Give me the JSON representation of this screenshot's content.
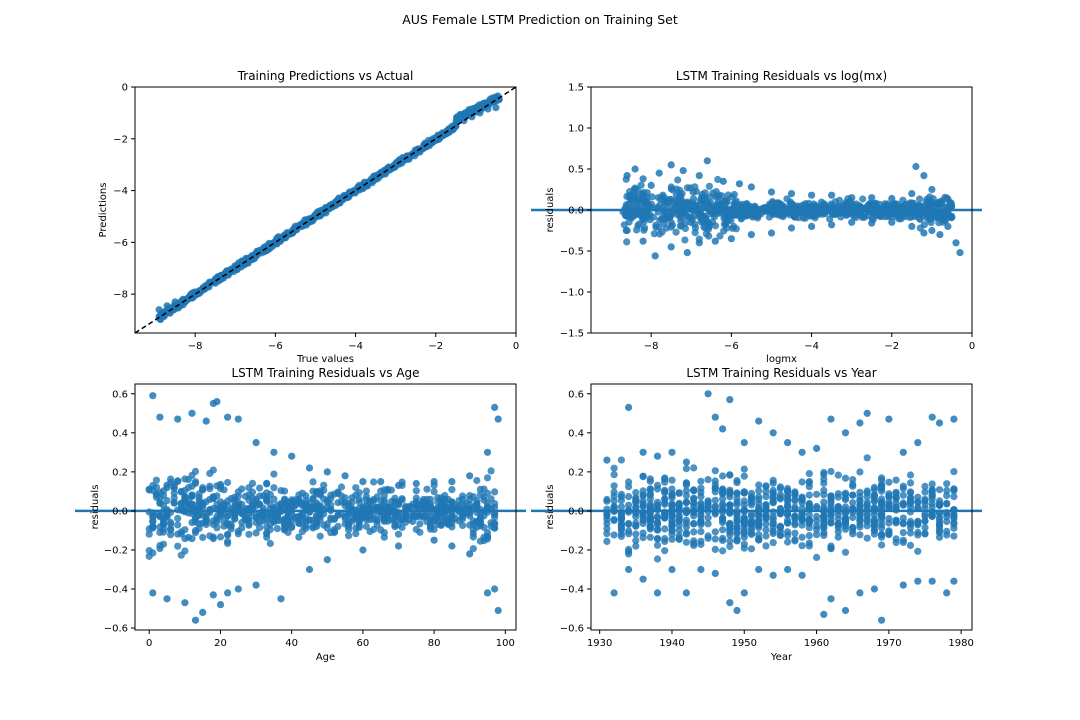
{
  "figure": {
    "suptitle": "AUS Female LSTM Prediction on Training Set"
  },
  "colors": {
    "points": "#1f77b4",
    "hline": "#1f77b4",
    "diagonal": "#000000"
  },
  "chart_data": [
    {
      "type": "scatter",
      "title": "Training Predictions vs Actual",
      "xlabel": "True values",
      "ylabel": "Predictions",
      "xlim": [
        -9.5,
        0
      ],
      "ylim": [
        -9.5,
        0
      ],
      "xticks": [
        -8,
        -6,
        -4,
        -2,
        0
      ],
      "yticks": [
        -8,
        -6,
        -4,
        -2,
        0
      ],
      "reference_line": {
        "style": "dashed",
        "from": [
          -9.5,
          -9.5
        ],
        "to": [
          0,
          0
        ]
      },
      "series": [
        {
          "points": [
            [
              -8.9,
              -8.6
            ],
            [
              -8.7,
              -8.45
            ],
            [
              -8.5,
              -8.3
            ],
            [
              -8.3,
              -8.2
            ],
            [
              -8.0,
              -7.95
            ],
            [
              -7.8,
              -7.75
            ],
            [
              -7.5,
              -7.45
            ],
            [
              -7.2,
              -7.1
            ],
            [
              -7.0,
              -6.95
            ],
            [
              -6.7,
              -6.7
            ],
            [
              -6.5,
              -6.45
            ],
            [
              -6.2,
              -6.2
            ],
            [
              -6.0,
              -6.0
            ],
            [
              -5.7,
              -5.7
            ],
            [
              -5.5,
              -5.45
            ],
            [
              -5.2,
              -5.2
            ],
            [
              -5.0,
              -5.0
            ],
            [
              -4.7,
              -4.7
            ],
            [
              -4.5,
              -4.45
            ],
            [
              -4.2,
              -4.2
            ],
            [
              -4.0,
              -4.0
            ],
            [
              -3.7,
              -3.7
            ],
            [
              -3.5,
              -3.5
            ],
            [
              -3.2,
              -3.2
            ],
            [
              -3.0,
              -3.0
            ],
            [
              -2.7,
              -2.75
            ],
            [
              -2.5,
              -2.5
            ],
            [
              -2.2,
              -2.25
            ],
            [
              -2.0,
              -2.05
            ],
            [
              -1.7,
              -1.75
            ],
            [
              -1.5,
              -1.5
            ],
            [
              -1.3,
              -1.3
            ],
            [
              -1.1,
              -1.15
            ],
            [
              -0.9,
              -1.0
            ],
            [
              -0.7,
              -0.85
            ],
            [
              -0.5,
              -0.8
            ]
          ]
        }
      ]
    },
    {
      "type": "scatter",
      "title": "LSTM Training Residuals vs log(mx)",
      "xlabel": "logmx",
      "ylabel": "residuals",
      "xlim": [
        -9.5,
        0
      ],
      "ylim": [
        -1.5,
        1.5
      ],
      "xticks": [
        -8,
        -6,
        -4,
        -2,
        0
      ],
      "yticks": [
        -1.5,
        -1.0,
        -0.5,
        0.0,
        0.5,
        1.0,
        1.5
      ],
      "hline": 0,
      "series": [
        {
          "points": [
            [
              -8.6,
              0.42
            ],
            [
              -8.4,
              0.5
            ],
            [
              -8.2,
              0.38
            ],
            [
              -8.0,
              0.3
            ],
            [
              -7.8,
              0.45
            ],
            [
              -7.5,
              0.55
            ],
            [
              -7.2,
              0.48
            ],
            [
              -6.8,
              0.42
            ],
            [
              -6.6,
              0.6
            ],
            [
              -6.2,
              0.35
            ],
            [
              -5.8,
              0.32
            ],
            [
              -5.5,
              0.28
            ],
            [
              -5.0,
              0.22
            ],
            [
              -4.5,
              0.2
            ],
            [
              -4.0,
              0.18
            ],
            [
              -3.5,
              0.18
            ],
            [
              -3.0,
              0.15
            ],
            [
              -2.5,
              0.15
            ],
            [
              -2.0,
              0.14
            ],
            [
              -1.5,
              0.2
            ],
            [
              -1.4,
              0.53
            ],
            [
              -1.2,
              0.42
            ],
            [
              -1.0,
              0.25
            ],
            [
              -0.8,
              0.1
            ],
            [
              -0.6,
              -0.2
            ],
            [
              -0.4,
              -0.4
            ],
            [
              -0.3,
              -0.52
            ],
            [
              -8.6,
              -0.25
            ],
            [
              -8.2,
              -0.38
            ],
            [
              -7.9,
              -0.56
            ],
            [
              -7.5,
              -0.45
            ],
            [
              -7.1,
              -0.52
            ],
            [
              -6.8,
              -0.4
            ],
            [
              -6.4,
              -0.38
            ],
            [
              -6.0,
              -0.35
            ],
            [
              -5.5,
              -0.3
            ],
            [
              -5.0,
              -0.28
            ],
            [
              -4.5,
              -0.22
            ],
            [
              -4.0,
              -0.2
            ],
            [
              -3.5,
              -0.18
            ],
            [
              -3.0,
              -0.15
            ],
            [
              -2.5,
              -0.16
            ],
            [
              -2.0,
              -0.15
            ],
            [
              -1.5,
              -0.2
            ],
            [
              -1.2,
              -0.28
            ],
            [
              -1.0,
              -0.25
            ],
            [
              -0.8,
              -0.3
            ]
          ]
        }
      ]
    },
    {
      "type": "scatter",
      "title": "LSTM Training  Residuals vs Age",
      "xlabel": "Age",
      "ylabel": "residuals",
      "xlim": [
        -4,
        103
      ],
      "ylim": [
        -0.61,
        0.65
      ],
      "xticks": [
        0,
        20,
        40,
        60,
        80,
        100
      ],
      "yticks": [
        -0.6,
        -0.4,
        -0.2,
        0.0,
        0.2,
        0.4,
        0.6
      ],
      "hline": 0,
      "series": [
        {
          "points": [
            [
              1,
              0.59
            ],
            [
              3,
              0.48
            ],
            [
              8,
              0.47
            ],
            [
              12,
              0.5
            ],
            [
              16,
              0.46
            ],
            [
              18,
              0.55
            ],
            [
              19,
              0.56
            ],
            [
              22,
              0.48
            ],
            [
              25,
              0.47
            ],
            [
              30,
              0.35
            ],
            [
              35,
              0.3
            ],
            [
              40,
              0.28
            ],
            [
              45,
              0.22
            ],
            [
              50,
              0.2
            ],
            [
              55,
              0.18
            ],
            [
              60,
              0.15
            ],
            [
              65,
              0.15
            ],
            [
              70,
              0.13
            ],
            [
              75,
              0.14
            ],
            [
              80,
              0.15
            ],
            [
              85,
              0.15
            ],
            [
              90,
              0.18
            ],
            [
              95,
              0.3
            ],
            [
              97,
              0.53
            ],
            [
              98,
              0.47
            ],
            [
              1,
              -0.42
            ],
            [
              5,
              -0.45
            ],
            [
              10,
              -0.47
            ],
            [
              13,
              -0.56
            ],
            [
              15,
              -0.52
            ],
            [
              18,
              -0.43
            ],
            [
              20,
              -0.48
            ],
            [
              22,
              -0.42
            ],
            [
              25,
              -0.4
            ],
            [
              30,
              -0.38
            ],
            [
              37,
              -0.45
            ],
            [
              45,
              -0.3
            ],
            [
              50,
              -0.25
            ],
            [
              60,
              -0.2
            ],
            [
              70,
              -0.18
            ],
            [
              80,
              -0.15
            ],
            [
              85,
              -0.18
            ],
            [
              90,
              -0.22
            ],
            [
              95,
              -0.42
            ],
            [
              97,
              -0.4
            ],
            [
              98,
              -0.51
            ]
          ]
        }
      ]
    },
    {
      "type": "scatter",
      "title": "LSTM Training  Residuals vs Year",
      "xlabel": "Year",
      "ylabel": "residuals",
      "xlim": [
        1928.8,
        1981.5
      ],
      "ylim": [
        -0.61,
        0.65
      ],
      "xticks": [
        1930,
        1940,
        1950,
        1960,
        1970,
        1980
      ],
      "yticks": [
        -0.6,
        -0.4,
        -0.2,
        0.0,
        0.2,
        0.4,
        0.6
      ],
      "hline": 0,
      "series": [
        {
          "points": [
            [
              1931,
              0.26
            ],
            [
              1934,
              0.53
            ],
            [
              1936,
              0.3
            ],
            [
              1938,
              0.28
            ],
            [
              1940,
              0.3
            ],
            [
              1942,
              0.25
            ],
            [
              1945,
              0.6
            ],
            [
              1946,
              0.48
            ],
            [
              1947,
              0.42
            ],
            [
              1948,
              0.57
            ],
            [
              1950,
              0.35
            ],
            [
              1952,
              0.46
            ],
            [
              1954,
              0.4
            ],
            [
              1956,
              0.35
            ],
            [
              1958,
              0.3
            ],
            [
              1960,
              0.32
            ],
            [
              1962,
              0.47
            ],
            [
              1964,
              0.4
            ],
            [
              1966,
              0.45
            ],
            [
              1967,
              0.5
            ],
            [
              1970,
              0.47
            ],
            [
              1972,
              0.3
            ],
            [
              1974,
              0.35
            ],
            [
              1976,
              0.48
            ],
            [
              1977,
              0.45
            ],
            [
              1979,
              0.47
            ],
            [
              1932,
              -0.42
            ],
            [
              1934,
              -0.3
            ],
            [
              1936,
              -0.35
            ],
            [
              1938,
              -0.42
            ],
            [
              1940,
              -0.3
            ],
            [
              1942,
              -0.42
            ],
            [
              1944,
              -0.3
            ],
            [
              1946,
              -0.32
            ],
            [
              1948,
              -0.47
            ],
            [
              1949,
              -0.51
            ],
            [
              1950,
              -0.42
            ],
            [
              1952,
              -0.3
            ],
            [
              1954,
              -0.33
            ],
            [
              1956,
              -0.3
            ],
            [
              1958,
              -0.33
            ],
            [
              1961,
              -0.53
            ],
            [
              1962,
              -0.45
            ],
            [
              1964,
              -0.51
            ],
            [
              1966,
              -0.42
            ],
            [
              1968,
              -0.4
            ],
            [
              1969,
              -0.56
            ],
            [
              1972,
              -0.38
            ],
            [
              1974,
              -0.36
            ],
            [
              1976,
              -0.36
            ],
            [
              1978,
              -0.42
            ],
            [
              1979,
              -0.36
            ]
          ]
        }
      ]
    }
  ]
}
